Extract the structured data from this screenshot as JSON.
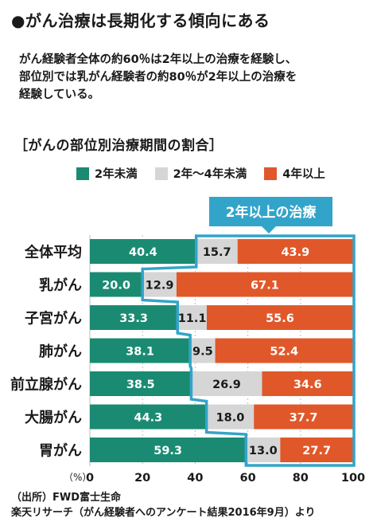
{
  "heading": "●がん治療は長期化する傾向にある",
  "lead": [
    "がん経験者全体の約60％は2年以上の治療を経験し、",
    "部位別では乳がん経験者の約80％が2年以上の治療を",
    "経験している。"
  ],
  "source": {
    "line1": "（出所）FWD富士生命",
    "line2": "楽天リサーチ（がん経験者へのアンケート結果2016年9月）より"
  },
  "colors": {
    "under2": "#1a8b72",
    "two_to_four": "#d6d6d6",
    "over4": "#e0582a",
    "callout": "#33a4c9"
  },
  "chart_data": {
    "type": "bar",
    "stacked": true,
    "orientation": "horizontal",
    "title": "［がんの部位別治療期間の割合］",
    "categories": [
      "全体平均",
      "乳がん",
      "子宮がん",
      "肺がん",
      "前立腺がん",
      "大腸がん",
      "胃がん"
    ],
    "series": [
      {
        "name": "2年未満",
        "values": [
          40.4,
          20.0,
          33.3,
          38.1,
          38.5,
          44.3,
          59.3
        ]
      },
      {
        "name": "2年～4年未満",
        "values": [
          15.7,
          12.9,
          11.1,
          9.5,
          26.9,
          18.0,
          13.0
        ]
      },
      {
        "name": "4年以上",
        "values": [
          43.9,
          67.1,
          55.6,
          52.4,
          34.6,
          37.7,
          27.7
        ]
      }
    ],
    "annotation": "2年以上の治療",
    "xunit": "（%）",
    "xticks": [
      "0",
      "20",
      "40",
      "60",
      "80",
      "100"
    ],
    "xlim": [
      0,
      100
    ],
    "grid": true
  }
}
